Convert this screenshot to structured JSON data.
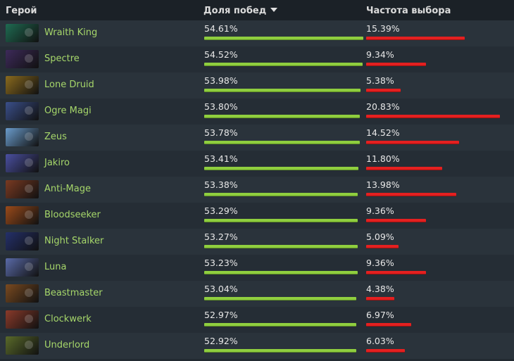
{
  "header": {
    "hero_label": "Герой",
    "winrate_label": "Доля побед",
    "pickrate_label": "Частота выбора"
  },
  "colors": {
    "winrate_bar": "#8fce3f",
    "pickrate_bar": "#e42020",
    "hero_name": "#a6d76a"
  },
  "rows": [
    {
      "hero": "Wraith King",
      "winrate": "54.61%",
      "pickrate": "15.39%",
      "win": 54.61,
      "pick": 15.39,
      "color": "#1f6b52"
    },
    {
      "hero": "Spectre",
      "winrate": "54.52%",
      "pickrate": "9.34%",
      "win": 54.52,
      "pick": 9.34,
      "color": "#3d2a5a"
    },
    {
      "hero": "Lone Druid",
      "winrate": "53.98%",
      "pickrate": "5.38%",
      "win": 53.98,
      "pick": 5.38,
      "color": "#8a6a1e"
    },
    {
      "hero": "Ogre Magi",
      "winrate": "53.80%",
      "pickrate": "20.83%",
      "win": 53.8,
      "pick": 20.83,
      "color": "#3a4f8a"
    },
    {
      "hero": "Zeus",
      "winrate": "53.78%",
      "pickrate": "14.52%",
      "win": 53.78,
      "pick": 14.52,
      "color": "#6a9ccc"
    },
    {
      "hero": "Jakiro",
      "winrate": "53.41%",
      "pickrate": "11.80%",
      "win": 53.41,
      "pick": 11.8,
      "color": "#4a4fa0"
    },
    {
      "hero": "Anti-Mage",
      "winrate": "53.38%",
      "pickrate": "13.98%",
      "win": 53.38,
      "pick": 13.98,
      "color": "#7a3a22"
    },
    {
      "hero": "Bloodseeker",
      "winrate": "53.29%",
      "pickrate": "9.36%",
      "win": 53.29,
      "pick": 9.36,
      "color": "#9a4a1a"
    },
    {
      "hero": "Night Stalker",
      "winrate": "53.27%",
      "pickrate": "5.09%",
      "win": 53.27,
      "pick": 5.09,
      "color": "#24306a"
    },
    {
      "hero": "Luna",
      "winrate": "53.23%",
      "pickrate": "9.36%",
      "win": 53.23,
      "pick": 9.36,
      "color": "#5a6aa8"
    },
    {
      "hero": "Beastmaster",
      "winrate": "53.04%",
      "pickrate": "4.38%",
      "win": 53.04,
      "pick": 4.38,
      "color": "#7a4a20"
    },
    {
      "hero": "Clockwerk",
      "winrate": "52.97%",
      "pickrate": "6.97%",
      "win": 52.97,
      "pick": 6.97,
      "color": "#8a3a2a"
    },
    {
      "hero": "Underlord",
      "winrate": "52.92%",
      "pickrate": "6.03%",
      "win": 52.92,
      "pick": 6.03,
      "color": "#5a6a2a"
    }
  ]
}
